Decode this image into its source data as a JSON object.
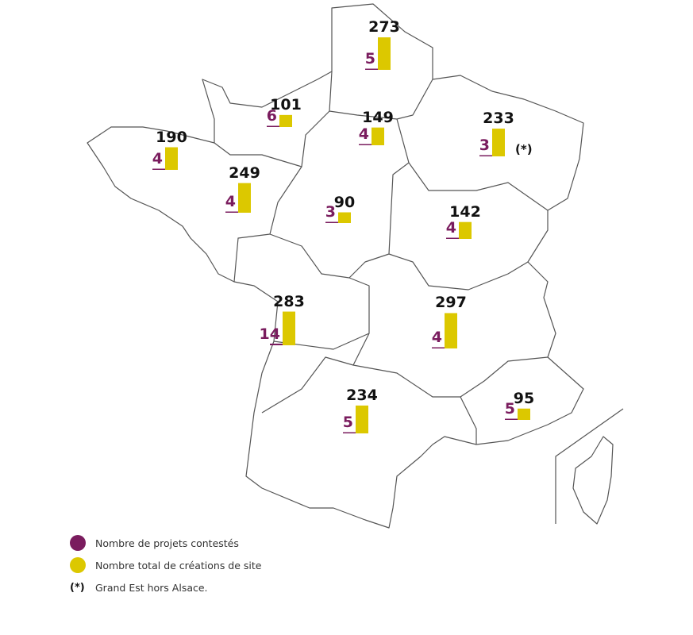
{
  "colors": {
    "contested": "#7a1c5e",
    "total": "#dcc800",
    "border": "#555555"
  },
  "regions": [
    {
      "id": "hauts-de-france",
      "total": 273,
      "contested": 5
    },
    {
      "id": "normandie",
      "total": 101,
      "contested": 6
    },
    {
      "id": "bretagne",
      "total": 190,
      "contested": 4
    },
    {
      "id": "ile-de-france",
      "total": 149,
      "contested": 4
    },
    {
      "id": "grand-est",
      "total": 233,
      "contested": 3,
      "note": "(*)"
    },
    {
      "id": "pays-de-la-loire",
      "total": 249,
      "contested": 4
    },
    {
      "id": "centre-val-de-loire",
      "total": 90,
      "contested": 3
    },
    {
      "id": "bourgogne-franche-comte",
      "total": 142,
      "contested": 4
    },
    {
      "id": "nouvelle-aquitaine",
      "total": 283,
      "contested": 14
    },
    {
      "id": "auvergne-rhone-alpes",
      "total": 297,
      "contested": 4
    },
    {
      "id": "occitanie",
      "total": 234,
      "contested": 5
    },
    {
      "id": "provence-alpes-cote-d-azur",
      "total": 95,
      "contested": 5
    }
  ],
  "legend": {
    "contested": "Nombre de projets contestés",
    "total": "Nombre total de créations de site",
    "note_symbol": "(*)",
    "note": "Grand Est hors Alsace."
  }
}
